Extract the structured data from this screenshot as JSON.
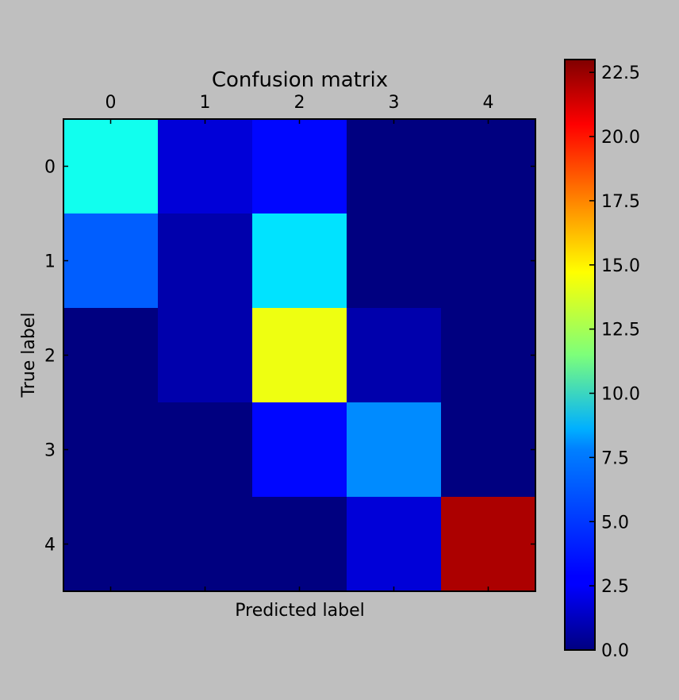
{
  "chart_data": {
    "type": "heatmap",
    "title": "Confusion matrix",
    "xlabel": "Predicted label",
    "ylabel": "True label",
    "x_categories": [
      "0",
      "1",
      "2",
      "3",
      "4"
    ],
    "y_categories": [
      "0",
      "1",
      "2",
      "3",
      "4"
    ],
    "values": [
      [
        9,
        2,
        3,
        0,
        0
      ],
      [
        5,
        1,
        8,
        0,
        0
      ],
      [
        0,
        1,
        14,
        1,
        0
      ],
      [
        0,
        0,
        3,
        6,
        0
      ],
      [
        0,
        0,
        0,
        2,
        22
      ]
    ],
    "colorbar": {
      "colormap": "jet",
      "vmin": 0,
      "vmax": 23,
      "ticks": [
        "0.0",
        "2.5",
        "5.0",
        "7.5",
        "10.0",
        "12.5",
        "15.0",
        "17.5",
        "20.0",
        "22.5"
      ]
    },
    "colors": {
      "background": "#bfbfbf",
      "frame": "#000000"
    }
  }
}
